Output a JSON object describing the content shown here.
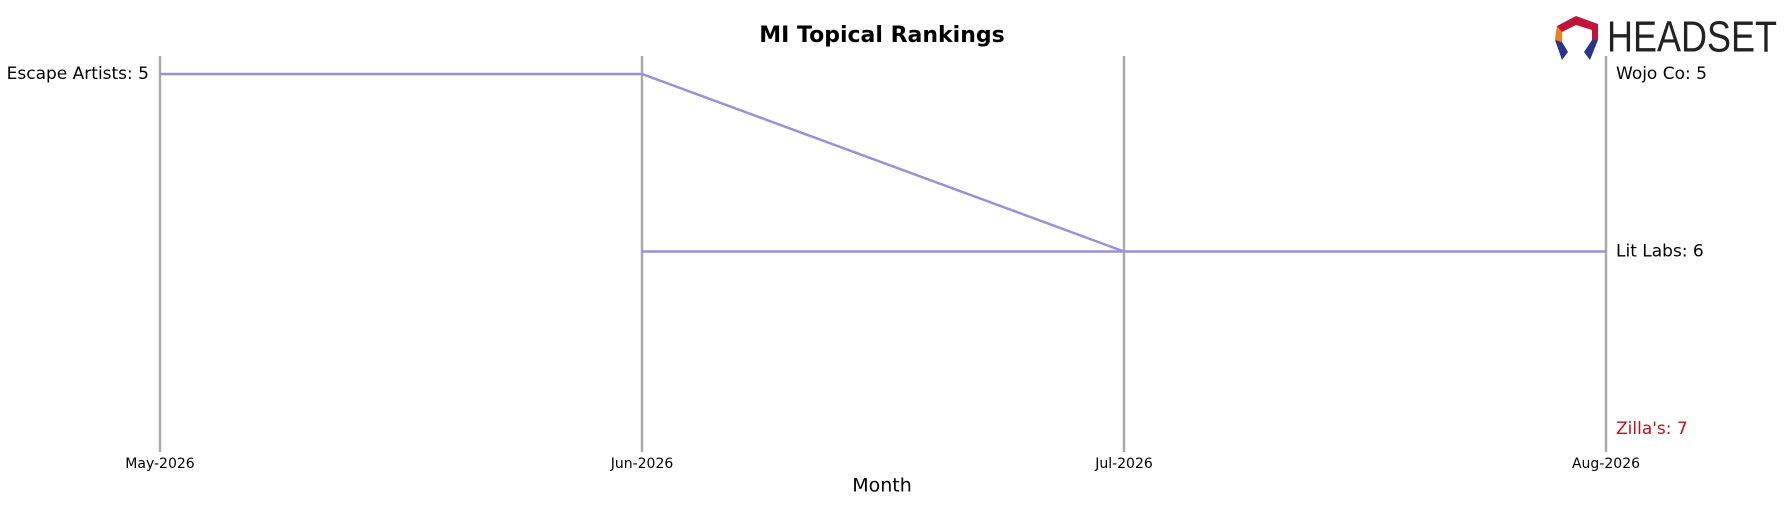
{
  "chart_data": {
    "type": "bump",
    "title": "MI Topical Rankings",
    "x_label": "Month",
    "logo": "HEADSET",
    "categories": [
      "May-2026",
      "Jun-2026",
      "Jul-2026",
      "Aug-2026"
    ],
    "ylim": [
      5,
      7
    ],
    "y_inverted": true,
    "series": [
      {
        "label": "Escape Artists: 5",
        "label_side": "left",
        "color": "#9890dc",
        "label_color": "#000000",
        "values": [
          5,
          5,
          6,
          null
        ]
      },
      {
        "label": "Lit Labs: 6",
        "label_side": "right",
        "color": "#9890dc",
        "label_color": "#000000",
        "values": [
          null,
          6,
          6,
          6
        ]
      },
      {
        "label": "Wojo Co: 5",
        "label_side": "right",
        "color": "#9890dc",
        "label_color": "#000000",
        "values": [
          null,
          null,
          null,
          5
        ]
      },
      {
        "label": "Zilla's: 7",
        "label_side": "right",
        "color": "#9890dc",
        "label_color": "#c0101c",
        "values": [
          null,
          null,
          null,
          7
        ]
      }
    ]
  }
}
